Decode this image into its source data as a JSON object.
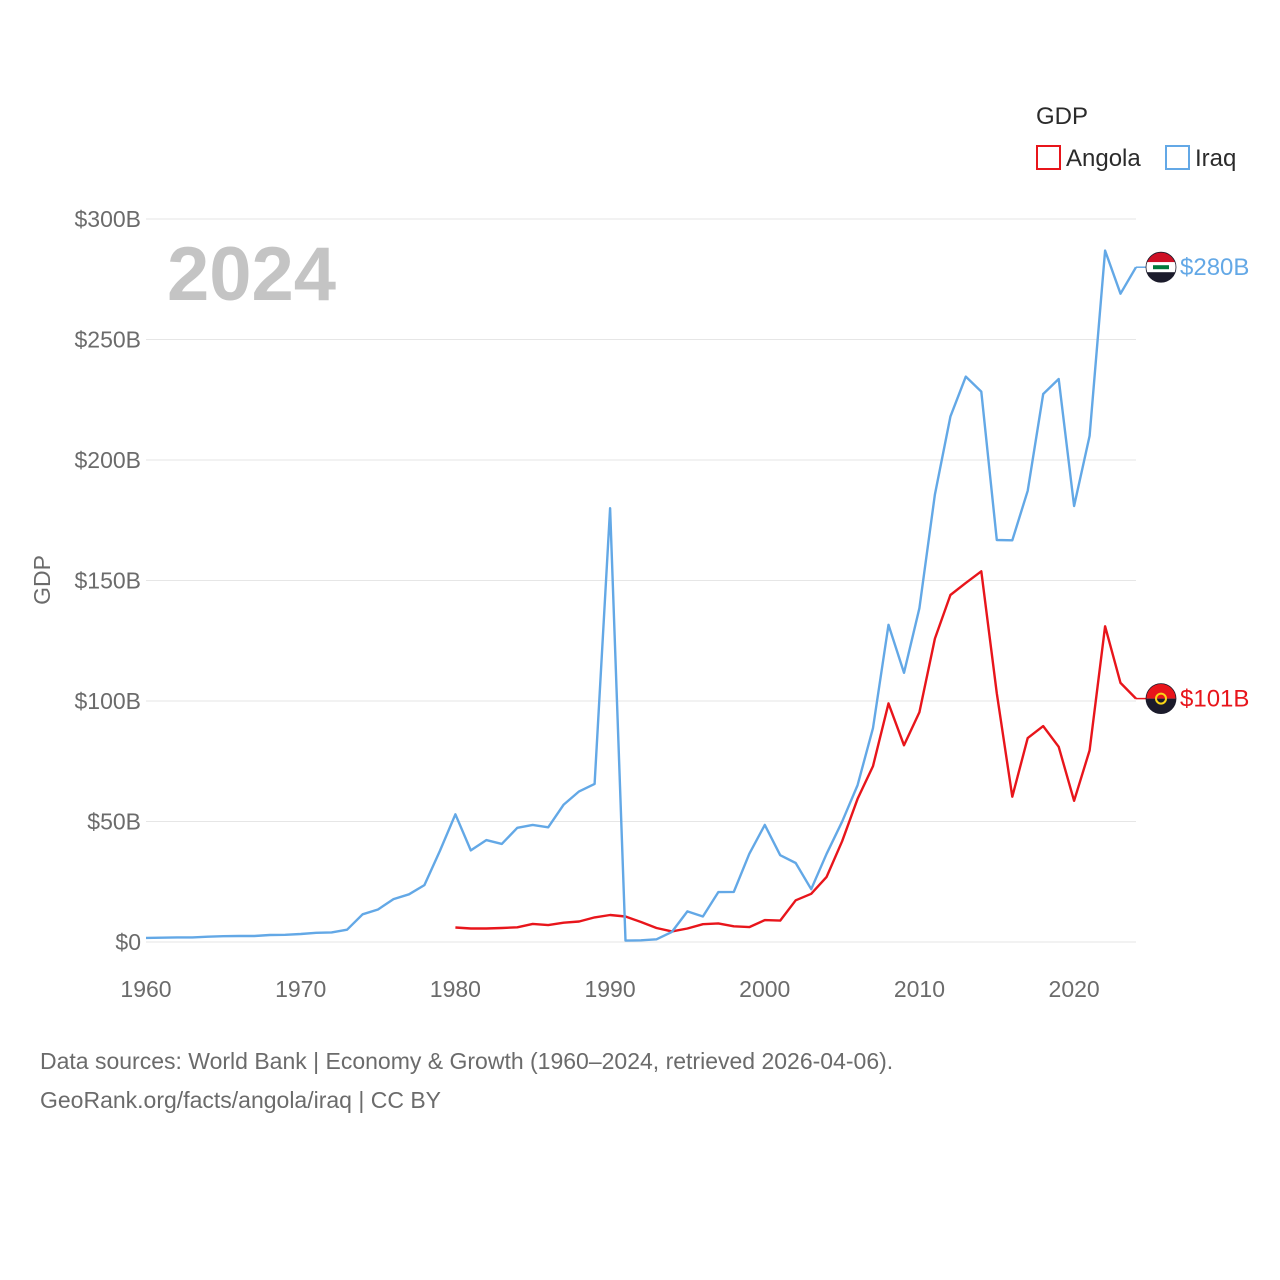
{
  "chart_data": {
    "type": "line",
    "title": "GDP",
    "watermark_year": "2024",
    "xlabel": "",
    "ylabel": "GDP",
    "xlim": [
      1960,
      2024
    ],
    "ylim": [
      0,
      300
    ],
    "x_ticks": [
      1960,
      1970,
      1980,
      1990,
      2000,
      2010,
      2020
    ],
    "x_tick_labels": [
      "1960",
      "1970",
      "1980",
      "1990",
      "2000",
      "2010",
      "2020"
    ],
    "y_ticks": [
      0,
      50,
      100,
      150,
      200,
      250,
      300
    ],
    "y_tick_labels": [
      "$0",
      "$50B",
      "$100B",
      "$150B",
      "$200B",
      "$250B",
      "$300B"
    ],
    "grid": true,
    "legend": {
      "title": "GDP",
      "position": "top-right"
    },
    "series": [
      {
        "name": "Angola",
        "color": "#e8151b",
        "unit": "billion USD",
        "end_label": "$101B",
        "end_value": 101,
        "flag_icon": "angola-flag-icon",
        "points": [
          [
            1980,
            6
          ],
          [
            1981,
            5.6
          ],
          [
            1982,
            5.6
          ],
          [
            1983,
            5.8
          ],
          [
            1984,
            6.1
          ],
          [
            1985,
            7.5
          ],
          [
            1986,
            7
          ],
          [
            1987,
            8
          ],
          [
            1988,
            8.5
          ],
          [
            1989,
            10.2
          ],
          [
            1990,
            11.2
          ],
          [
            1991,
            10.6
          ],
          [
            1992,
            8.3
          ],
          [
            1993,
            5.8
          ],
          [
            1994,
            4.4
          ],
          [
            1995,
            5.6
          ],
          [
            1996,
            7.4
          ],
          [
            1997,
            7.7
          ],
          [
            1998,
            6.5
          ],
          [
            1999,
            6.2
          ],
          [
            2000,
            9.1
          ],
          [
            2001,
            8.9
          ],
          [
            2002,
            17.3
          ],
          [
            2003,
            20
          ],
          [
            2004,
            27
          ],
          [
            2005,
            41.8
          ],
          [
            2006,
            59.4
          ],
          [
            2007,
            73
          ],
          [
            2008,
            99
          ],
          [
            2009,
            81.6
          ],
          [
            2010,
            95.3
          ],
          [
            2011,
            125.9
          ],
          [
            2012,
            144
          ],
          [
            2013,
            149
          ],
          [
            2014,
            153.8
          ],
          [
            2015,
            103.2
          ],
          [
            2016,
            60.3
          ],
          [
            2017,
            84.6
          ],
          [
            2018,
            89.6
          ],
          [
            2019,
            81
          ],
          [
            2020,
            58.6
          ],
          [
            2021,
            79.5
          ],
          [
            2022,
            131
          ],
          [
            2023,
            107.5
          ],
          [
            2024,
            101
          ]
        ]
      },
      {
        "name": "Iraq",
        "color": "#63a8e6",
        "unit": "billion USD",
        "end_label": "$280B",
        "end_value": 280,
        "flag_icon": "iraq-flag-icon",
        "points": [
          [
            1960,
            1.7
          ],
          [
            1961,
            1.8
          ],
          [
            1962,
            1.9
          ],
          [
            1963,
            1.9
          ],
          [
            1964,
            2.2
          ],
          [
            1965,
            2.4
          ],
          [
            1966,
            2.5
          ],
          [
            1967,
            2.5
          ],
          [
            1968,
            2.9
          ],
          [
            1969,
            3.0
          ],
          [
            1970,
            3.3
          ],
          [
            1971,
            3.8
          ],
          [
            1972,
            4.0
          ],
          [
            1973,
            5.1
          ],
          [
            1974,
            11.5
          ],
          [
            1975,
            13.5
          ],
          [
            1976,
            17.8
          ],
          [
            1977,
            19.8
          ],
          [
            1978,
            23.6
          ],
          [
            1979,
            37.8
          ],
          [
            1980,
            53
          ],
          [
            1981,
            38
          ],
          [
            1982,
            42.3
          ],
          [
            1983,
            40.7
          ],
          [
            1984,
            47.4
          ],
          [
            1985,
            48.6
          ],
          [
            1986,
            47.6
          ],
          [
            1987,
            57
          ],
          [
            1988,
            62.5
          ],
          [
            1989,
            65.6
          ],
          [
            1990,
            180
          ],
          [
            1991,
            0.6
          ],
          [
            1992,
            0.7
          ],
          [
            1993,
            1.1
          ],
          [
            1994,
            4.2
          ],
          [
            1995,
            12.7
          ],
          [
            1996,
            10.6
          ],
          [
            1997,
            20.7
          ],
          [
            1998,
            20.8
          ],
          [
            1999,
            36.6
          ],
          [
            2000,
            48.6
          ],
          [
            2001,
            36
          ],
          [
            2002,
            32.8
          ],
          [
            2003,
            21.9
          ],
          [
            2004,
            36.6
          ],
          [
            2005,
            49.9
          ],
          [
            2006,
            65.1
          ],
          [
            2007,
            88.8
          ],
          [
            2008,
            131.6
          ],
          [
            2009,
            111.7
          ],
          [
            2010,
            138.5
          ],
          [
            2011,
            185.7
          ],
          [
            2012,
            218
          ],
          [
            2013,
            234.6
          ],
          [
            2014,
            228.4
          ],
          [
            2015,
            166.8
          ],
          [
            2016,
            166.7
          ],
          [
            2017,
            187.2
          ],
          [
            2018,
            227.4
          ],
          [
            2019,
            233.6
          ],
          [
            2020,
            180.9
          ],
          [
            2021,
            210
          ],
          [
            2022,
            286.9
          ],
          [
            2023,
            269
          ],
          [
            2024,
            280
          ]
        ]
      }
    ]
  },
  "footer": {
    "line1": "Data sources: World Bank | Economy & Growth (1960–2024, retrieved 2026-04-06).",
    "line2": "GeoRank.org/facts/angola/iraq | CC BY"
  }
}
